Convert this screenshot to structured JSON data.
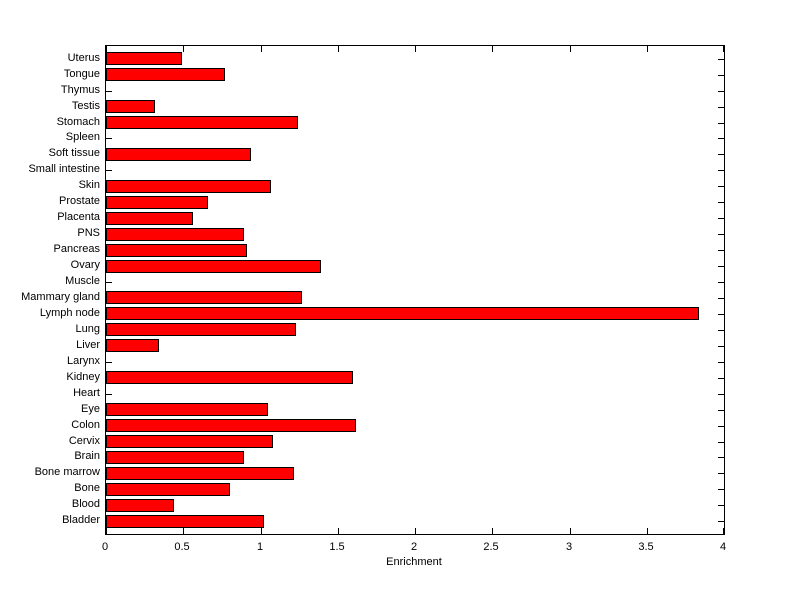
{
  "chart_data": {
    "type": "bar",
    "orientation": "horizontal",
    "title": "",
    "xlabel": "Enrichment",
    "ylabel": "",
    "xlim": [
      0,
      4
    ],
    "x_ticks": [
      0,
      0.5,
      1,
      1.5,
      2,
      2.5,
      3,
      3.5,
      4
    ],
    "x_tick_labels": [
      "0",
      "0.5",
      "1",
      "1.5",
      "2",
      "2.5",
      "3",
      "3.5",
      "4"
    ],
    "grid": false,
    "legend": false,
    "box": true,
    "bar_fill_color": "#ff0000",
    "bar_edge_color": "#000000",
    "axis_color": "#000000",
    "background_color": "#ffffff",
    "categories_top_to_bottom": [
      "Uterus",
      "Tongue",
      "Thymus",
      "Testis",
      "Stomach",
      "Spleen",
      "Soft tissue",
      "Small intestine",
      "Skin",
      "Prostate",
      "Placenta",
      "PNS",
      "Pancreas",
      "Ovary",
      "Muscle",
      "Mammary gland",
      "Lymph node",
      "Lung",
      "Liver",
      "Larynx",
      "Kidney",
      "Heart",
      "Eye",
      "Colon",
      "Cervix",
      "Brain",
      "Bone marrow",
      "Bone",
      "Blood",
      "Bladder"
    ],
    "values": [
      0.49,
      0.77,
      0,
      0.32,
      1.24,
      0,
      0.94,
      0,
      1.07,
      0.66,
      0.56,
      0.89,
      0.91,
      1.39,
      0,
      1.27,
      3.84,
      1.23,
      0.34,
      0,
      1.6,
      0,
      1.05,
      1.62,
      1.08,
      0.89,
      1.22,
      0.8,
      0.44,
      1.02
    ]
  }
}
